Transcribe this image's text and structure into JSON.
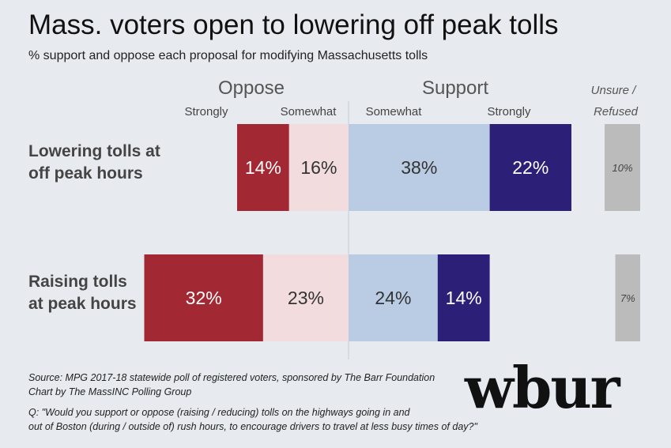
{
  "header": {
    "title": "Mass. voters open to lowering off peak tolls",
    "subtitle": "% support and oppose each proposal for modifying Massachusetts tolls"
  },
  "chart_data": {
    "type": "bar",
    "orientation": "horizontal-diverging-stacked",
    "title": "Mass. voters open to lowering off peak tolls",
    "group_headers": {
      "oppose": "Oppose",
      "support": "Support",
      "unsure": [
        "Unsure /",
        "Refused"
      ]
    },
    "categories": [
      "Lowering tolls at off peak hours",
      "Raising tolls at peak hours"
    ],
    "category_label_lines": [
      [
        "Lowering tolls at",
        "off peak hours"
      ],
      [
        "Raising tolls",
        "at peak hours"
      ]
    ],
    "series": [
      {
        "name": "Strongly",
        "side": "oppose",
        "color": "#a22833",
        "text_color": "#ffffff",
        "values": [
          14,
          32
        ],
        "labels": [
          "14%",
          "32%"
        ]
      },
      {
        "name": "Somewhat",
        "side": "oppose",
        "color": "#f2dcdd",
        "text_color": "#333333",
        "values": [
          16,
          23
        ],
        "labels": [
          "16%",
          "23%"
        ]
      },
      {
        "name": "Somewhat",
        "side": "support",
        "color": "#b9cce3",
        "text_color": "#333333",
        "values": [
          38,
          24
        ],
        "labels": [
          "38%",
          "24%"
        ]
      },
      {
        "name": "Strongly",
        "side": "support",
        "color": "#2c1f78",
        "text_color": "#ffffff",
        "values": [
          22,
          14
        ],
        "labels": [
          "22%",
          "14%"
        ]
      }
    ],
    "unsure_refused": {
      "values": [
        10,
        7
      ],
      "labels": [
        "10%",
        "7%"
      ],
      "color": "#bbbbbb"
    }
  },
  "footer": {
    "source": "Source: MPG 2017-18 statewide poll of registered voters, sponsored by The Barr Foundation",
    "credit": "Chart by The MassINC Polling Group",
    "question_line1": "Q: \"Would you support or oppose (raising / reducing) tolls on the highways going in and",
    "question_line2": "out of Boston (during / outside of) rush hours, to encourage drivers to travel at less busy times of day?\""
  },
  "logo": {
    "text": "wbur"
  }
}
